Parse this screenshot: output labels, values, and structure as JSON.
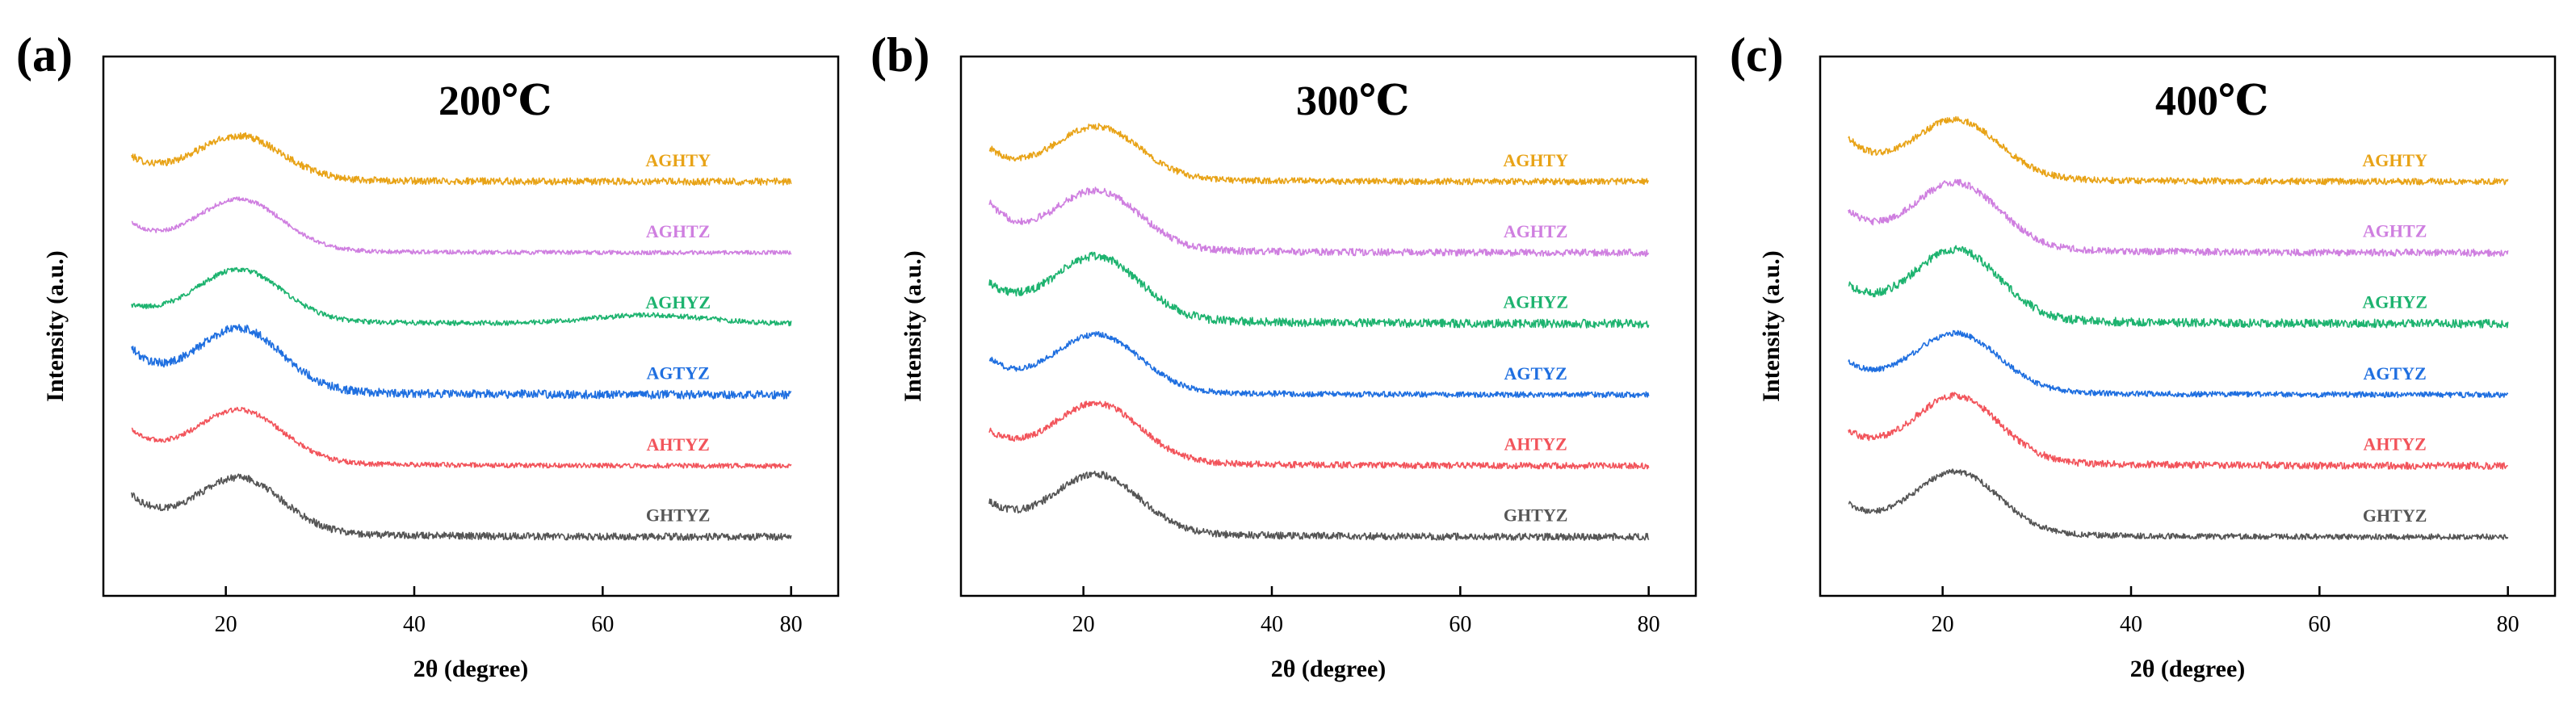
{
  "figure": {
    "y_axis_label": "Intensity (a.u.)",
    "x_axis_label": "2θ (degree)"
  },
  "series_colors": {
    "AGHTY": "#E8A317",
    "AGHTZ": "#CF7FE0",
    "AGHYZ": "#1DB36F",
    "AGTYZ": "#1F6FE0",
    "AHTYZ": "#F2545B",
    "GHTYZ": "#555555"
  },
  "chart_data": [
    {
      "type": "line",
      "panel": "(a)",
      "title": "200℃",
      "xlabel": "2θ (degree)",
      "ylabel": "Intensity (a.u.)",
      "xlim": [
        7,
        85
      ],
      "xticks": [
        20,
        40,
        60,
        80
      ],
      "x_range": [
        10,
        80
      ],
      "yaxis_ticks": false,
      "grid": false,
      "series": [
        {
          "name": "AGHTY",
          "offset": 5.0,
          "peak_2theta": 21.5,
          "peak_height": 0.6,
          "baseline_start": 0.25,
          "tail": 0.05,
          "noise": 0.05
        },
        {
          "name": "AGHTZ",
          "offset": 4.0,
          "peak_2theta": 21.5,
          "peak_height": 0.7,
          "baseline_start": 0.3,
          "tail": 0.06,
          "noise": 0.03
        },
        {
          "name": "AGHYZ",
          "offset": 3.0,
          "peak_2theta": 21.5,
          "peak_height": 0.7,
          "baseline_start": 0.1,
          "tail": 0.08,
          "noise": 0.035,
          "hump_2theta": 65,
          "hump_height": 0.12
        },
        {
          "name": "AGTYZ",
          "offset": 2.0,
          "peak_2theta": 21.5,
          "peak_height": 0.85,
          "baseline_start": 0.45,
          "tail": 0.1,
          "noise": 0.06
        },
        {
          "name": "AHTYZ",
          "offset": 1.0,
          "peak_2theta": 21.5,
          "peak_height": 0.72,
          "baseline_start": 0.35,
          "tail": 0.08,
          "noise": 0.035
        },
        {
          "name": "GHTYZ",
          "offset": 0.0,
          "peak_2theta": 21.5,
          "peak_height": 0.75,
          "baseline_start": 0.4,
          "tail": 0.1,
          "noise": 0.05
        }
      ]
    },
    {
      "type": "line",
      "panel": "(b)",
      "title": "300℃",
      "xlabel": "2θ (degree)",
      "ylabel": "Intensity (a.u.)",
      "xlim": [
        7,
        85
      ],
      "xticks": [
        20,
        40,
        60,
        80
      ],
      "x_range": [
        10,
        80
      ],
      "yaxis_ticks": false,
      "grid": false,
      "series": [
        {
          "name": "AGHTY",
          "offset": 5.0,
          "peak_2theta": 21.5,
          "peak_height": 0.72,
          "baseline_start": 0.35,
          "tail": 0.06,
          "noise": 0.045
        },
        {
          "name": "AGHTZ",
          "offset": 4.0,
          "peak_2theta": 21.5,
          "peak_height": 0.8,
          "baseline_start": 0.55,
          "tail": 0.08,
          "noise": 0.05
        },
        {
          "name": "AGHYZ",
          "offset": 3.0,
          "peak_2theta": 21.5,
          "peak_height": 0.85,
          "baseline_start": 0.35,
          "tail": 0.12,
          "noise": 0.06
        },
        {
          "name": "AGTYZ",
          "offset": 2.0,
          "peak_2theta": 21.5,
          "peak_height": 0.78,
          "baseline_start": 0.35,
          "tail": 0.08,
          "noise": 0.04
        },
        {
          "name": "AHTYZ",
          "offset": 1.0,
          "peak_2theta": 21.5,
          "peak_height": 0.8,
          "baseline_start": 0.3,
          "tail": 0.1,
          "noise": 0.045
        },
        {
          "name": "GHTYZ",
          "offset": 0.0,
          "peak_2theta": 21.5,
          "peak_height": 0.8,
          "baseline_start": 0.3,
          "tail": 0.1,
          "noise": 0.05
        }
      ]
    },
    {
      "type": "line",
      "panel": "(c)",
      "title": "400℃",
      "xlabel": "2θ (degree)",
      "ylabel": "Intensity (a.u.)",
      "xlim": [
        7,
        85
      ],
      "xticks": [
        20,
        40,
        60,
        80
      ],
      "x_range": [
        10,
        80
      ],
      "yaxis_ticks": false,
      "grid": false,
      "series": [
        {
          "name": "AGHTY",
          "offset": 5.0,
          "peak_2theta": 21.5,
          "peak_height": 0.8,
          "baseline_start": 0.45,
          "tail": 0.08,
          "noise": 0.045
        },
        {
          "name": "AGHTZ",
          "offset": 4.0,
          "peak_2theta": 21.5,
          "peak_height": 0.9,
          "baseline_start": 0.4,
          "tail": 0.1,
          "noise": 0.05
        },
        {
          "name": "AGHYZ",
          "offset": 3.0,
          "peak_2theta": 21.5,
          "peak_height": 0.95,
          "baseline_start": 0.3,
          "tail": 0.12,
          "noise": 0.06
        },
        {
          "name": "AGTYZ",
          "offset": 2.0,
          "peak_2theta": 21.5,
          "peak_height": 0.8,
          "baseline_start": 0.3,
          "tail": 0.08,
          "noise": 0.04
        },
        {
          "name": "AHTYZ",
          "offset": 1.0,
          "peak_2theta": 21.5,
          "peak_height": 0.9,
          "baseline_start": 0.3,
          "tail": 0.1,
          "noise": 0.05
        },
        {
          "name": "GHTYZ",
          "offset": 0.0,
          "peak_2theta": 21.5,
          "peak_height": 0.85,
          "baseline_start": 0.3,
          "tail": 0.08,
          "noise": 0.04
        }
      ]
    }
  ]
}
